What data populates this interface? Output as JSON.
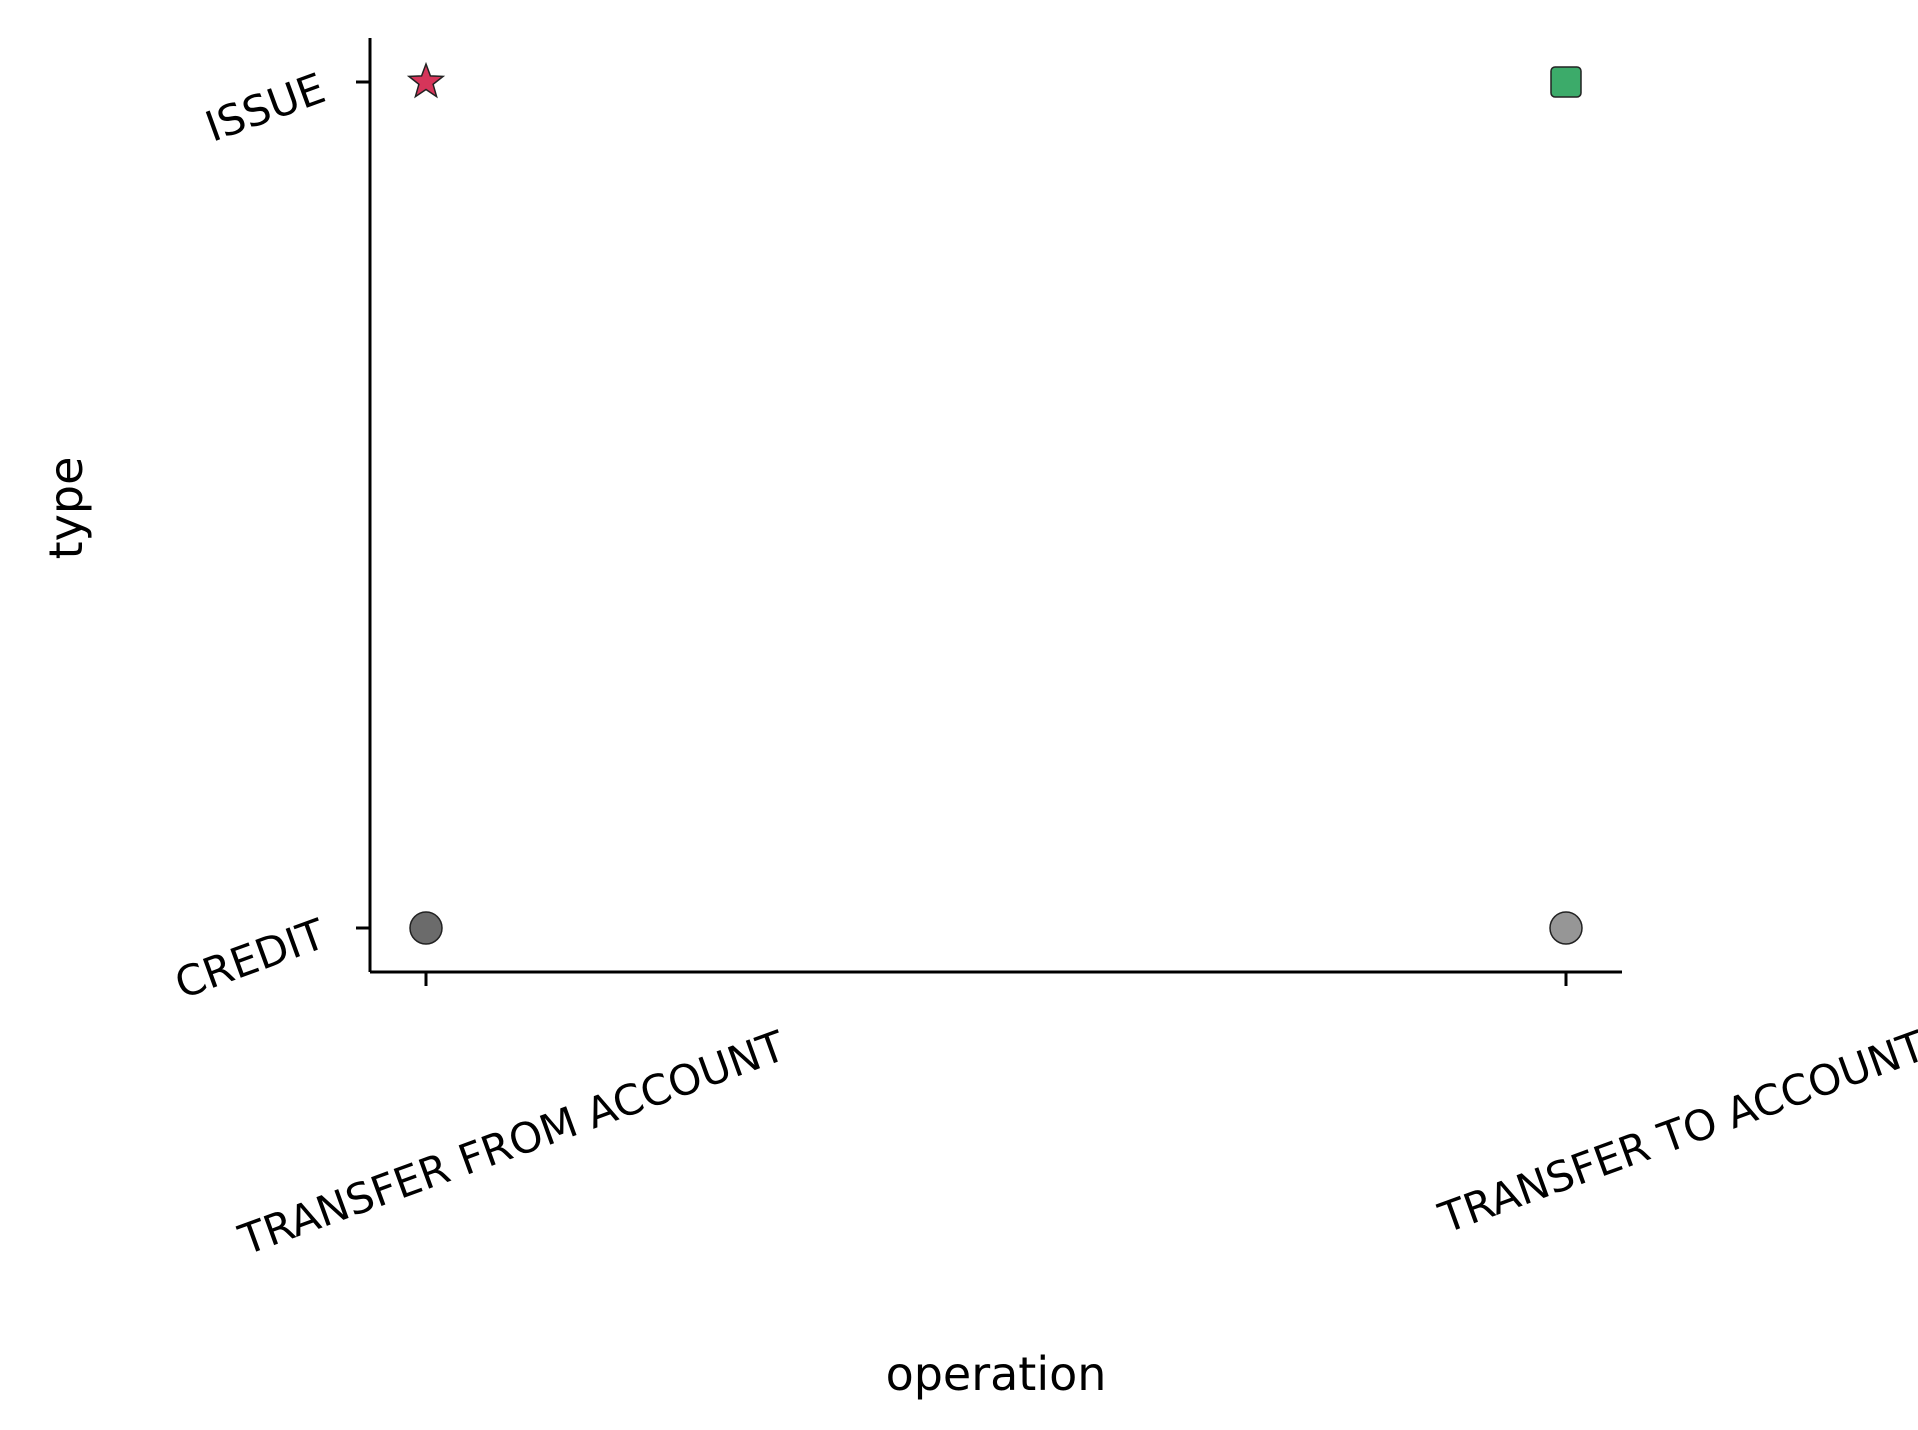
{
  "chart_data": {
    "type": "scatter",
    "xlabel": "operation",
    "ylabel": "type",
    "x_categories": [
      "TRANSFER FROM ACCOUNT",
      "TRANSFER TO ACCOUNT"
    ],
    "y_categories": [
      "CREDIT",
      "ISSUE"
    ],
    "grid": false,
    "points": [
      {
        "x": "TRANSFER FROM ACCOUNT",
        "y": "ISSUE",
        "marker": "star",
        "color": "#d6355a"
      },
      {
        "x": "TRANSFER TO ACCOUNT",
        "y": "ISSUE",
        "marker": "square",
        "color": "#3cab6a"
      },
      {
        "x": "TRANSFER FROM ACCOUNT",
        "y": "CREDIT",
        "marker": "circle",
        "color": "#6b6b6b"
      },
      {
        "x": "TRANSFER TO ACCOUNT",
        "y": "CREDIT",
        "marker": "circle",
        "color": "#969696"
      }
    ]
  }
}
